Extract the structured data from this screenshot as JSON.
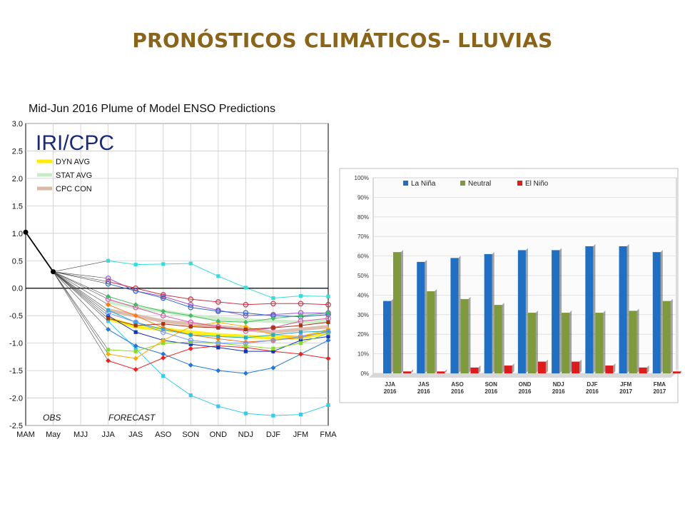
{
  "slide_title": "PRONÓSTICOS CLIMÁTICOS- LLUVIAS",
  "colors": {
    "title": "#8a6418",
    "la_nina": "#1f6fc4",
    "neutral": "#7f9a3a",
    "el_nino": "#e01b1b"
  },
  "chart_data": [
    {
      "type": "line",
      "title": "Mid-Jun 2016 Plume of Model ENSO Predictions",
      "logo_text": "IRI/CPC",
      "categories": [
        "MAM",
        "May",
        "MJJ",
        "JJA",
        "JAS",
        "ASO",
        "SON",
        "OND",
        "NDJ",
        "DJF",
        "JFM",
        "FMA"
      ],
      "ylim": [
        -2.5,
        3.0
      ],
      "yticks": [
        "3.0",
        "2.5",
        "2.0",
        "1.5",
        "1.0",
        "0.5",
        "0.0",
        "-0.5",
        "-1.0",
        "-1.5",
        "-2.0",
        "-2.5"
      ],
      "zero_line": 0.0,
      "obs_label": "OBS",
      "forecast_label": "FORECAST",
      "observed": {
        "x": [
          "MAM",
          "May"
        ],
        "values": [
          1.02,
          0.3
        ]
      },
      "legend": [
        {
          "label": "DYN AVG",
          "color": "#ffee00"
        },
        {
          "label": "STAT AVG",
          "color": "#c8ecc8"
        },
        {
          "label": "CPC CON",
          "color": "#d9b8a8"
        }
      ],
      "averages": [
        {
          "name": "DYN AVG",
          "color": "#ffee00",
          "values": [
            -0.55,
            -0.7,
            -0.75,
            -0.8,
            -0.85,
            -0.88,
            -0.9,
            -0.9,
            -0.8
          ]
        },
        {
          "name": "STAT AVG",
          "color": "#c8ecc8",
          "values": [
            -0.25,
            -0.35,
            -0.42,
            -0.5,
            -0.55,
            -0.58,
            -0.6,
            -0.62,
            -0.6
          ]
        },
        {
          "name": "CPC CON",
          "color": "#d9b8a8",
          "values": [
            -0.4,
            -0.5,
            -0.6,
            -0.65,
            -0.7,
            -0.75,
            -0.8,
            -0.75,
            -0.7
          ]
        }
      ],
      "models": [
        {
          "color": "#33dddd",
          "marker": "square",
          "values": [
            0.5,
            0.43,
            0.44,
            0.45,
            0.22,
            0.01,
            -0.18,
            -0.14,
            -0.15
          ]
        },
        {
          "color": "#33ccee",
          "marker": "square",
          "values": [
            -0.6,
            -1.1,
            -1.6,
            -1.95,
            -2.15,
            -2.28,
            -2.32,
            -2.3,
            -2.13
          ]
        },
        {
          "color": "#2277dd",
          "marker": "diamond",
          "values": [
            -0.75,
            -1.05,
            -1.2,
            -1.4,
            -1.5,
            -1.55,
            -1.45,
            -1.2,
            -0.95
          ]
        },
        {
          "color": "#ee2222",
          "marker": "diamond",
          "values": [
            -1.32,
            -1.48,
            -1.27,
            -1.1,
            -1.05,
            -1.08,
            -1.15,
            -1.2,
            -1.28
          ]
        },
        {
          "color": "#1133bb",
          "marker": "square",
          "values": [
            -0.5,
            -0.8,
            -0.95,
            -1.02,
            -1.08,
            -1.15,
            -1.15,
            -0.95,
            -0.88
          ]
        },
        {
          "color": "#88dd22",
          "marker": "square",
          "values": [
            -1.12,
            -1.15,
            -1.0,
            -0.98,
            -1.0,
            -1.05,
            -1.1,
            -1.0,
            -0.82
          ]
        },
        {
          "color": "#ffaa00",
          "marker": "diamond",
          "values": [
            -1.2,
            -1.28,
            -0.95,
            -0.7,
            -0.62,
            -0.7,
            -0.85,
            -0.88,
            -0.75
          ]
        },
        {
          "color": "#9955cc",
          "marker": "circle",
          "values": [
            0.18,
            -0.05,
            -0.15,
            -0.3,
            -0.4,
            -0.5,
            -0.48,
            -0.45,
            -0.45
          ]
        },
        {
          "color": "#cc3344",
          "marker": "circle",
          "values": [
            0.12,
            0.0,
            -0.12,
            -0.2,
            -0.25,
            -0.3,
            -0.28,
            -0.28,
            -0.3
          ]
        },
        {
          "color": "#3366cc",
          "marker": "circle",
          "values": [
            0.08,
            -0.05,
            -0.18,
            -0.35,
            -0.42,
            -0.45,
            -0.5,
            -0.52,
            -0.48
          ]
        },
        {
          "color": "#ff7711",
          "marker": "diamond",
          "values": [
            -0.3,
            -0.5,
            -0.72,
            -0.85,
            -0.92,
            -0.98,
            -0.95,
            -0.9,
            -0.78
          ]
        },
        {
          "color": "#22aacc",
          "marker": "square",
          "values": [
            -0.4,
            -0.62,
            -0.75,
            -0.85,
            -0.88,
            -0.9,
            -0.85,
            -0.8,
            -0.78
          ]
        },
        {
          "color": "#dd55aa",
          "marker": "circle",
          "values": [
            -0.2,
            -0.35,
            -0.5,
            -0.62,
            -0.7,
            -0.78,
            -0.72,
            -0.6,
            -0.55
          ]
        },
        {
          "color": "#7799ff",
          "marker": "circle",
          "values": [
            -0.45,
            -0.62,
            -0.8,
            -0.95,
            -1.0,
            -1.0,
            -0.95,
            -0.88,
            -0.8
          ]
        },
        {
          "color": "#44bb66",
          "marker": "diamond",
          "values": [
            -0.15,
            -0.3,
            -0.42,
            -0.5,
            -0.6,
            -0.62,
            -0.55,
            -0.5,
            -0.45
          ]
        },
        {
          "color": "#aa3311",
          "marker": "square",
          "values": [
            -0.55,
            -0.68,
            -0.65,
            -0.7,
            -0.72,
            -0.75,
            -0.72,
            -0.68,
            -0.62
          ]
        }
      ]
    },
    {
      "type": "bar",
      "title": "",
      "categories": [
        "JJA 2016",
        "JAS 2016",
        "ASO 2016",
        "SON 2016",
        "OND 2016",
        "NDJ 2016",
        "DJF 2016",
        "JFM 2017",
        "FMA 2017"
      ],
      "category_lines": [
        [
          "JJA",
          "2016"
        ],
        [
          "JAS",
          "2016"
        ],
        [
          "ASO",
          "2016"
        ],
        [
          "SON",
          "2016"
        ],
        [
          "OND",
          "2016"
        ],
        [
          "NDJ",
          "2016"
        ],
        [
          "DJF",
          "2016"
        ],
        [
          "JFM",
          "2017"
        ],
        [
          "FMA",
          "2017"
        ]
      ],
      "ylim": [
        0,
        100
      ],
      "yticks": [
        "100%",
        "90%",
        "80%",
        "70%",
        "60%",
        "50%",
        "40%",
        "30%",
        "20%",
        "10%",
        "0%"
      ],
      "series": [
        {
          "name": "La Niña",
          "color": "#1f6fc4",
          "values": [
            37,
            57,
            59,
            61,
            63,
            63,
            65,
            65,
            62
          ]
        },
        {
          "name": "Neutral",
          "color": "#7f9a3a",
          "values": [
            62,
            42,
            38,
            35,
            31,
            31,
            31,
            32,
            37
          ]
        },
        {
          "name": "El Niño",
          "color": "#e01b1b",
          "values": [
            1,
            1,
            3,
            4,
            6,
            6,
            4,
            3,
            1
          ]
        }
      ],
      "legend_position": "top-left",
      "grid": true
    }
  ]
}
